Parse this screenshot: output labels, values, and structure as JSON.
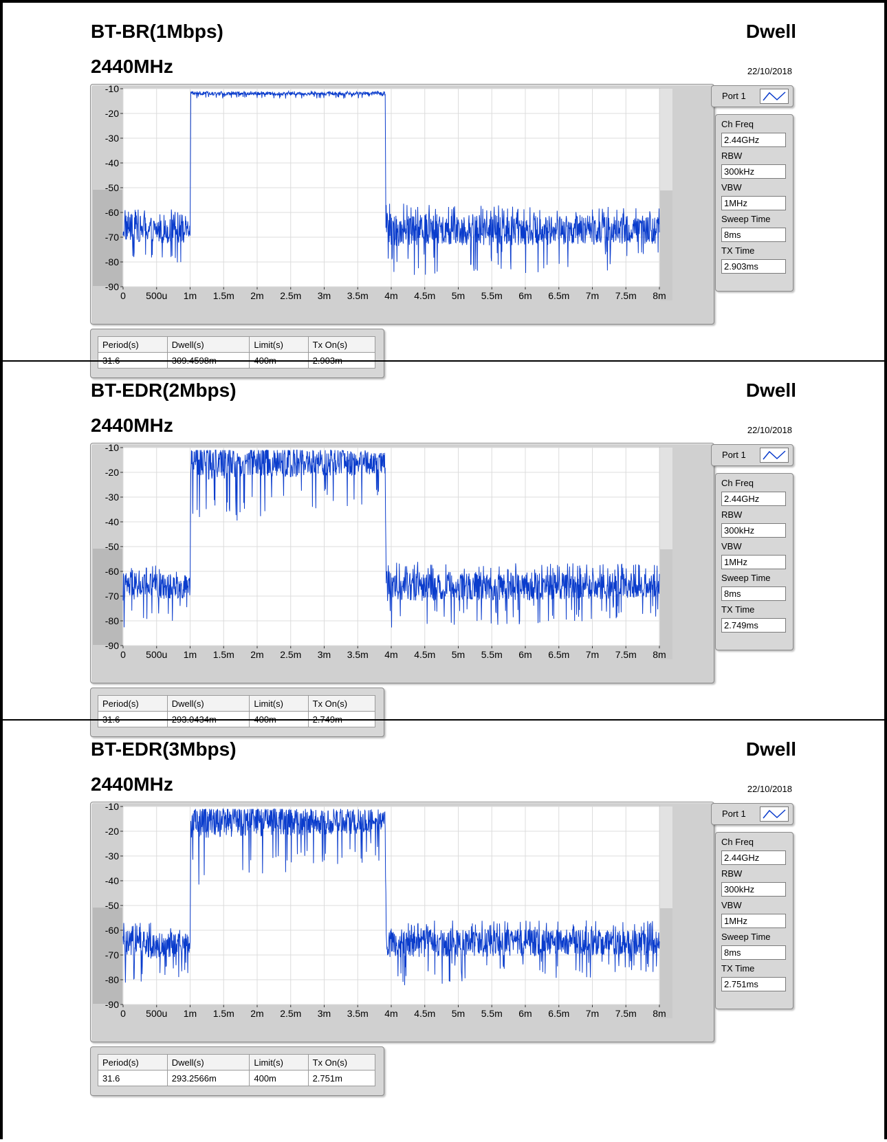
{
  "panels": [
    {
      "title": "BT-BR(1Mbps)",
      "mode": "Dwell",
      "frequency": "2440MHz",
      "date": "22/10/2018",
      "port": "Port 1",
      "settings": [
        {
          "label": "Ch Freq",
          "value": "2.44GHz"
        },
        {
          "label": "RBW",
          "value": "300kHz"
        },
        {
          "label": "VBW",
          "value": "1MHz"
        },
        {
          "label": "Sweep Time",
          "value": "8ms"
        },
        {
          "label": "TX Time",
          "value": "2.903ms"
        }
      ],
      "table": {
        "headers": [
          "Period(s)",
          "Dwell(s)",
          "Limit(s)",
          "Tx On(s)"
        ],
        "values": [
          "31.6",
          "309.4598m",
          "400m",
          "2.903m"
        ]
      }
    },
    {
      "title": "BT-EDR(2Mbps)",
      "mode": "Dwell",
      "frequency": "2440MHz",
      "date": "22/10/2018",
      "port": "Port 1",
      "settings": [
        {
          "label": "Ch Freq",
          "value": "2.44GHz"
        },
        {
          "label": "RBW",
          "value": "300kHz"
        },
        {
          "label": "VBW",
          "value": "1MHz"
        },
        {
          "label": "Sweep Time",
          "value": "8ms"
        },
        {
          "label": "TX Time",
          "value": "2.749ms"
        }
      ],
      "table": {
        "headers": [
          "Period(s)",
          "Dwell(s)",
          "Limit(s)",
          "Tx On(s)"
        ],
        "values": [
          "31.6",
          "293.0434m",
          "400m",
          "2.749m"
        ]
      }
    },
    {
      "title": "BT-EDR(3Mbps)",
      "mode": "Dwell",
      "frequency": "2440MHz",
      "date": "22/10/2018",
      "port": "Port 1",
      "settings": [
        {
          "label": "Ch Freq",
          "value": "2.44GHz"
        },
        {
          "label": "RBW",
          "value": "300kHz"
        },
        {
          "label": "VBW",
          "value": "1MHz"
        },
        {
          "label": "Sweep Time",
          "value": "8ms"
        },
        {
          "label": "TX Time",
          "value": "2.751ms"
        }
      ],
      "table": {
        "headers": [
          "Period(s)",
          "Dwell(s)",
          "Limit(s)",
          "Tx On(s)"
        ],
        "values": [
          "31.6",
          "293.2566m",
          "400m",
          "2.751m"
        ]
      }
    }
  ],
  "chart_data": [
    {
      "type": "line",
      "title": "",
      "xlabel": "",
      "ylabel": "",
      "xlim": [
        0,
        0.008
      ],
      "ylim": [
        -90,
        -10
      ],
      "x_ticks": [
        "0",
        "500u",
        "1m",
        "1.5m",
        "2m",
        "2.5m",
        "3m",
        "3.5m",
        "4m",
        "4.5m",
        "5m",
        "5.5m",
        "6m",
        "6.5m",
        "7m",
        "7.5m",
        "8m"
      ],
      "y_ticks": [
        "-10",
        "-20",
        "-30",
        "-40",
        "-50",
        "-60",
        "-70",
        "-80",
        "-90"
      ],
      "grid": true,
      "line_color": "#0a3ccc",
      "series": [
        {
          "x": [
            0,
            0.0009,
            0.001,
            0.00101,
            0.00391,
            0.00392,
            0.00393,
            0.008
          ],
          "y": [
            -66,
            -68,
            -67,
            -12,
            -12,
            -65,
            -67,
            -67
          ],
          "y_min": [
            -83,
            -80,
            -78,
            -14,
            -14,
            -80,
            -86,
            -83
          ],
          "y_max": [
            -58,
            -59,
            -59,
            -11,
            -11,
            -58,
            -56,
            -58
          ]
        }
      ]
    },
    {
      "type": "line",
      "title": "",
      "xlabel": "",
      "ylabel": "",
      "xlim": [
        0,
        0.008
      ],
      "ylim": [
        -90,
        -10
      ],
      "x_ticks": [
        "0",
        "500u",
        "1m",
        "1.5m",
        "2m",
        "2.5m",
        "3m",
        "3.5m",
        "4m",
        "4.5m",
        "5m",
        "5.5m",
        "6m",
        "6.5m",
        "7m",
        "7.5m",
        "8m"
      ],
      "y_ticks": [
        "-10",
        "-20",
        "-30",
        "-40",
        "-50",
        "-60",
        "-70",
        "-80",
        "-90"
      ],
      "grid": true,
      "line_color": "#0a3ccc",
      "series": [
        {
          "x": [
            0,
            0.0009,
            0.001,
            0.00101,
            0.00391,
            0.00392,
            0.00393,
            0.008
          ],
          "y": [
            -66,
            -66,
            -66,
            -16,
            -16,
            -63,
            -66,
            -66
          ],
          "y_min": [
            -83,
            -80,
            -76,
            -42,
            -32,
            -50,
            -83,
            -80
          ],
          "y_max": [
            -57,
            -58,
            -60,
            -11,
            -11,
            -58,
            -56,
            -57
          ]
        }
      ]
    },
    {
      "type": "line",
      "title": "",
      "xlabel": "",
      "ylabel": "",
      "xlim": [
        0,
        0.008
      ],
      "ylim": [
        -90,
        -10
      ],
      "x_ticks": [
        "0",
        "500u",
        "1m",
        "1.5m",
        "2m",
        "2.5m",
        "3m",
        "3.5m",
        "4m",
        "4.5m",
        "5m",
        "5.5m",
        "6m",
        "6.5m",
        "7m",
        "7.5m",
        "8m"
      ],
      "y_ticks": [
        "-10",
        "-20",
        "-30",
        "-40",
        "-50",
        "-60",
        "-70",
        "-80",
        "-90"
      ],
      "grid": true,
      "line_color": "#0a3ccc",
      "series": [
        {
          "x": [
            0,
            0.0009,
            0.001,
            0.00101,
            0.00391,
            0.00392,
            0.00393,
            0.008
          ],
          "y": [
            -66,
            -66,
            -66,
            -16,
            -16,
            -60,
            -65,
            -65
          ],
          "y_min": [
            -82,
            -80,
            -77,
            -42,
            -32,
            -45,
            -83,
            -78
          ],
          "y_max": [
            -56,
            -58,
            -60,
            -11,
            -11,
            -58,
            -56,
            -56
          ]
        }
      ]
    }
  ]
}
